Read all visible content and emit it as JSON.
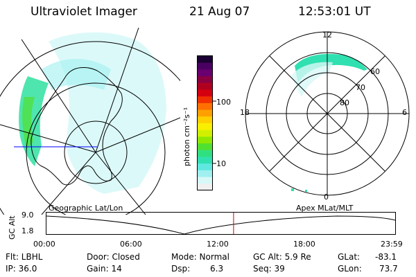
{
  "header": {
    "instrument": "Ultraviolet Imager",
    "date": "21 Aug 07",
    "time": "12:53:01 UT"
  },
  "colorbar": {
    "units_label": "photon cm⁻²s⁻¹",
    "ticks": [
      "100",
      "10"
    ],
    "colors": [
      "#1a0033",
      "#4a0060",
      "#6a0070",
      "#8a0040",
      "#b00020",
      "#d40010",
      "#f03000",
      "#ff7000",
      "#ffa000",
      "#ffd000",
      "#f8f000",
      "#d0f000",
      "#90e800",
      "#50e030",
      "#30e080",
      "#30e0b0",
      "#60e8e0",
      "#a0f0f0",
      "#d8f8f8",
      "#f0f0f0"
    ]
  },
  "polar": {
    "mlt_labels": [
      "12",
      "18",
      "6",
      "0"
    ],
    "lat_labels": [
      "60",
      "70",
      "80"
    ]
  },
  "timeline": {
    "left_label": "Geographic Lat/Lon",
    "right_label": "Apex MLat/MLT",
    "axis_label": "GC Alt",
    "y_ticks": [
      "9.0",
      "1.8"
    ],
    "x_ticks": [
      "00:00",
      "06:00",
      "12:00",
      "18:00",
      "23:59"
    ],
    "current_time_hours": 12.88
  },
  "info": {
    "row1": {
      "flt": "Flt: LBHL",
      "door": "Door: Closed",
      "mode": "Mode: Normal",
      "gcalt": "GC Alt: 5.9 Re",
      "glat_label": "GLat:",
      "glat_value": "-83.1"
    },
    "row2": {
      "ip": "IP: 36.0",
      "gain": "Gain: 14",
      "dsp_label": "Dsp:",
      "dsp_value": "6.3",
      "seq": "Seq: 39",
      "glon_label": "GLon:",
      "glon_value": "73.7"
    }
  }
}
